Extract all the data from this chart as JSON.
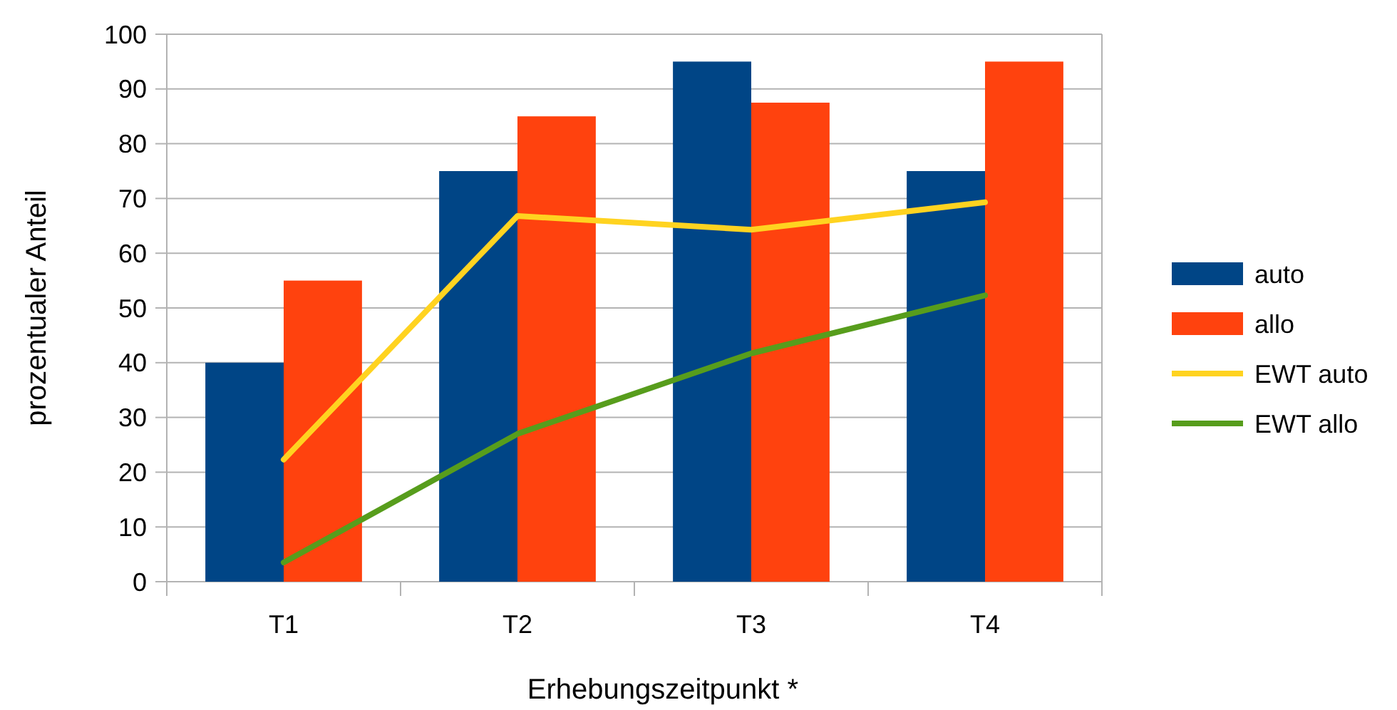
{
  "chart_data": {
    "type": "bar",
    "xlabel": "Erhebungszeitpunkt *",
    "ylabel": "prozentualer Anteil",
    "categories": [
      "T1",
      "T2",
      "T3",
      "T4"
    ],
    "series": [
      {
        "name": "auto",
        "color": "#004586",
        "values": [
          40,
          75,
          95,
          75
        ]
      },
      {
        "name": "allo",
        "color": "#ff420e",
        "values": [
          55,
          85,
          87.5,
          95
        ]
      },
      {
        "name": "EWT auto",
        "type": "line",
        "color": "#ffd320",
        "values": [
          22.3,
          66.8,
          64.3,
          69.3
        ]
      },
      {
        "name": "EWT allo",
        "type": "line",
        "color": "#579d1c",
        "values": [
          3.5,
          27,
          41.7,
          52.3
        ]
      }
    ],
    "ylim": [
      0,
      100
    ],
    "yticks": [
      0,
      10,
      20,
      30,
      40,
      50,
      60,
      70,
      80,
      90,
      100
    ],
    "grid": "y",
    "legend": "right",
    "marker": "none"
  }
}
